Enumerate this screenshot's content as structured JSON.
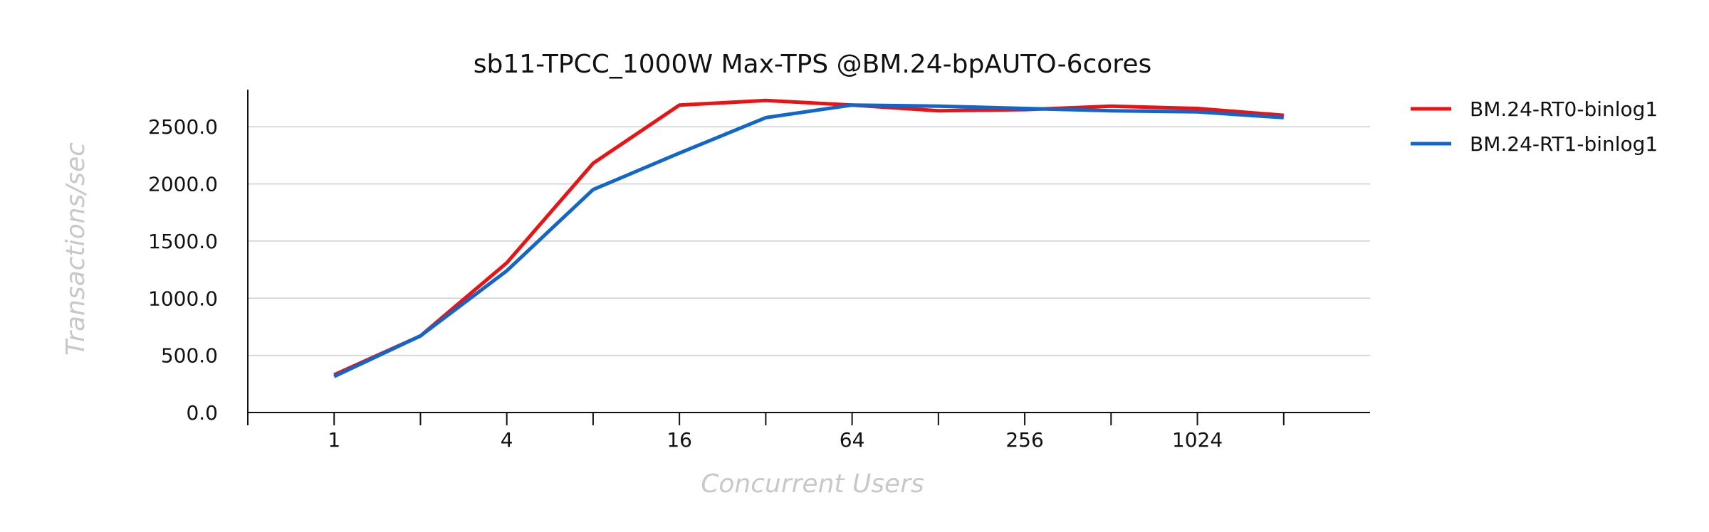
{
  "chart_data": {
    "type": "line",
    "title": "sb11-TPCC_1000W Max-TPS @BM.24-bpAUTO-6cores",
    "xlabel": "Concurrent Users",
    "ylabel": "Transactions/sec",
    "x_scale": "log2",
    "x": [
      1,
      2,
      4,
      8,
      16,
      32,
      64,
      128,
      256,
      512,
      1024,
      2048
    ],
    "x_tick_values": [
      1,
      4,
      16,
      64,
      256,
      1024
    ],
    "x_tick_labels": [
      "1",
      "4",
      "16",
      "64",
      "256",
      "1024"
    ],
    "xlim": [
      0.5,
      4096
    ],
    "ylim": [
      0,
      2800
    ],
    "y_ticks": [
      0,
      500,
      1000,
      1500,
      2000,
      2500
    ],
    "y_tick_labels": [
      "0.0",
      "500.0",
      "1000.0",
      "1500.0",
      "2000.0",
      "2500.0"
    ],
    "grid": "horizontal",
    "legend_position": "right",
    "series": [
      {
        "name": "BM.24-RT0-binlog1",
        "color": "#ee1111",
        "values": [
          330,
          670,
          1310,
          2180,
          2690,
          2730,
          2690,
          2640,
          2650,
          2680,
          2660,
          2600
        ]
      },
      {
        "name": "BM.24-RT1-binlog1",
        "color": "#1166cc",
        "values": [
          315,
          670,
          1240,
          1950,
          2270,
          2580,
          2690,
          2680,
          2660,
          2640,
          2630,
          2580
        ]
      }
    ]
  }
}
